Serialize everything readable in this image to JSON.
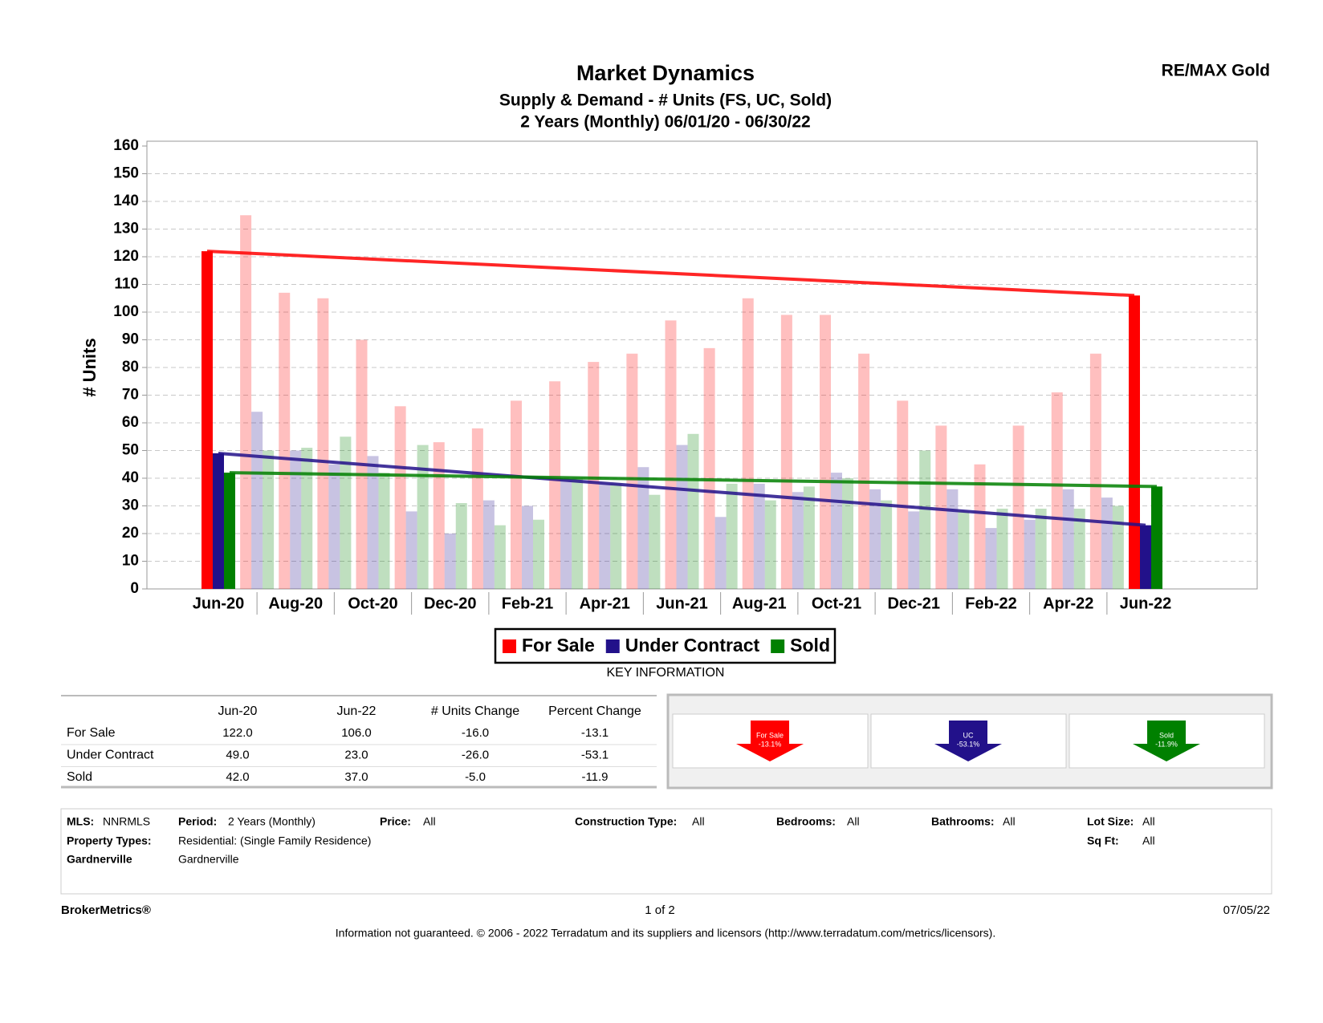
{
  "chart_data": {
    "type": "bar",
    "title": "Market Dynamics",
    "subtitles": [
      "Supply & Demand - # Units (FS, UC, Sold)",
      "2 Years (Monthly) 06/01/20 - 06/30/22"
    ],
    "y_label": "# Units",
    "categories": [
      "Jun-20",
      null,
      "Aug-20",
      null,
      "Oct-20",
      null,
      "Dec-20",
      null,
      "Feb-21",
      null,
      "Apr-21",
      null,
      "Jun-21",
      null,
      "Aug-21",
      null,
      "Oct-21",
      null,
      "Dec-21",
      null,
      "Feb-22",
      null,
      "Apr-22",
      null,
      "Jun-22"
    ],
    "series": [
      {
        "name": "For Sale",
        "color": "#ff0000",
        "values": [
          122,
          135,
          107,
          105,
          90,
          66,
          53,
          58,
          68,
          75,
          82,
          85,
          97,
          87,
          105,
          99,
          99,
          85,
          68,
          59,
          45,
          59,
          71,
          85,
          106
        ]
      },
      {
        "name": "Under Contract",
        "color": "#22118a",
        "values": [
          49,
          64,
          50,
          45,
          48,
          28,
          20,
          32,
          30,
          40,
          38,
          44,
          52,
          26,
          38,
          35,
          42,
          36,
          28,
          36,
          22,
          25,
          36,
          33,
          23
        ]
      },
      {
        "name": "Sold",
        "color": "#008000",
        "values": [
          42,
          50,
          51,
          55,
          42,
          52,
          31,
          23,
          25,
          40,
          38,
          34,
          56,
          38,
          32,
          37,
          40,
          32,
          50,
          28,
          29,
          29,
          29,
          30,
          37
        ]
      }
    ],
    "ylim": [
      0,
      160
    ],
    "yticks": [
      0,
      10,
      20,
      30,
      40,
      50,
      60,
      70,
      80,
      90,
      100,
      110,
      120,
      130,
      140,
      150,
      160
    ],
    "grid": true,
    "trend_lines": true,
    "legend": "bottom"
  },
  "header": {
    "brand": "RE/MAX Gold"
  },
  "key_information": {
    "title": "KEY INFORMATION",
    "columns": [
      "Jun-20",
      "Jun-22",
      "# Units Change",
      "Percent Change"
    ],
    "rows": [
      {
        "label": "For Sale",
        "values": [
          "122.0",
          "106.0",
          "-16.0",
          "-13.1"
        ]
      },
      {
        "label": "Under Contract",
        "values": [
          "49.0",
          "23.0",
          "-26.0",
          "-53.1"
        ]
      },
      {
        "label": "Sold",
        "values": [
          "42.0",
          "37.0",
          "-5.0",
          "-11.9"
        ]
      }
    ],
    "arrows": [
      {
        "label": "For Sale",
        "value": "-13.1%",
        "color": "#ff0000"
      },
      {
        "label": "UC",
        "value": "-53.1%",
        "color": "#22118a"
      },
      {
        "label": "Sold",
        "value": "-11.9%",
        "color": "#008000"
      }
    ]
  },
  "criteria": [
    {
      "label": "MLS:",
      "value": "NNRMLS"
    },
    {
      "label": "Period:",
      "value": "2 Years (Monthly)"
    },
    {
      "label": "Price:",
      "value": "All"
    },
    {
      "label": "Construction Type:",
      "value": "All"
    },
    {
      "label": "Bedrooms:",
      "value": "All"
    },
    {
      "label": "Bathrooms:",
      "value": "All"
    },
    {
      "label": "Lot Size:",
      "value": "All"
    },
    {
      "label": "Property Types:",
      "value": "Residential: (Single Family Residence)"
    },
    {
      "label": "Sq Ft:",
      "value": "All"
    },
    {
      "label": "Gardnerville",
      "value": "Gardnerville"
    }
  ],
  "footer": {
    "brand": "BrokerMetrics®",
    "page": "1 of 2",
    "date": "07/05/22",
    "disclaimer": "Information not guaranteed.  © 2006 - 2022 Terradatum and its suppliers and licensors (http://www.terradatum.com/metrics/licensors)."
  }
}
